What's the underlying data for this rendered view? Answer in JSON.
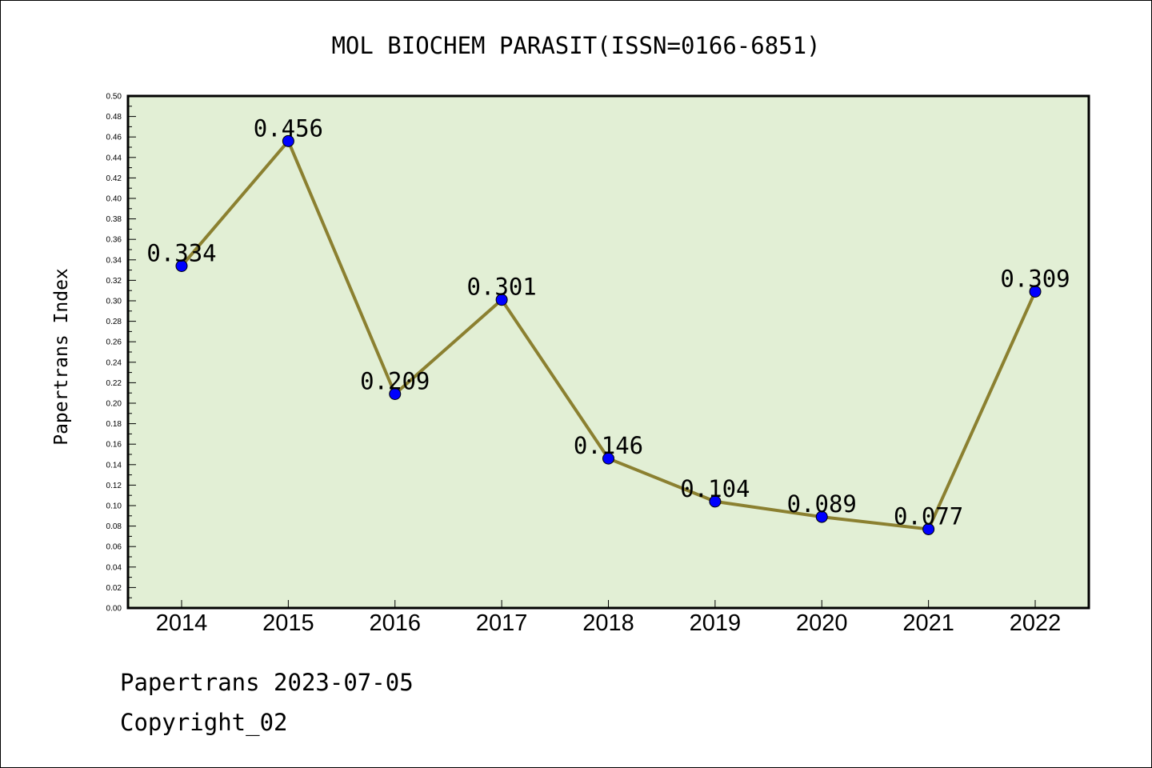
{
  "chart_data": {
    "type": "line",
    "title": "MOL BIOCHEM PARASIT(ISSN=0166-6851)",
    "ylabel": "Papertrans Index",
    "xlabel": "",
    "categories": [
      "2014",
      "2015",
      "2016",
      "2017",
      "2018",
      "2019",
      "2020",
      "2021",
      "2022"
    ],
    "values": [
      0.334,
      0.456,
      0.209,
      0.301,
      0.146,
      0.104,
      0.089,
      0.077,
      0.309
    ],
    "data_labels": [
      "0.334",
      "0.456",
      "0.209",
      "0.301",
      "0.146",
      "0.104",
      "0.089",
      "0.077",
      "0.309"
    ],
    "ylim": [
      0,
      0.5
    ],
    "y_ticks": [
      "0.00",
      "0.02",
      "0.04",
      "0.06",
      "0.08",
      "0.10",
      "0.12",
      "0.14",
      "0.16",
      "0.18",
      "0.20",
      "0.22",
      "0.24",
      "0.26",
      "0.28",
      "0.30",
      "0.32",
      "0.34",
      "0.36",
      "0.38",
      "0.40",
      "0.42",
      "0.44",
      "0.46",
      "0.48",
      "0.50"
    ],
    "grid": false,
    "colors": {
      "plot_background": "#e2efd5",
      "line": "#8b8030",
      "marker": "#0000ff"
    }
  },
  "footer": {
    "line1": "Papertrans 2023-07-05",
    "line2": "Copyright_02"
  }
}
